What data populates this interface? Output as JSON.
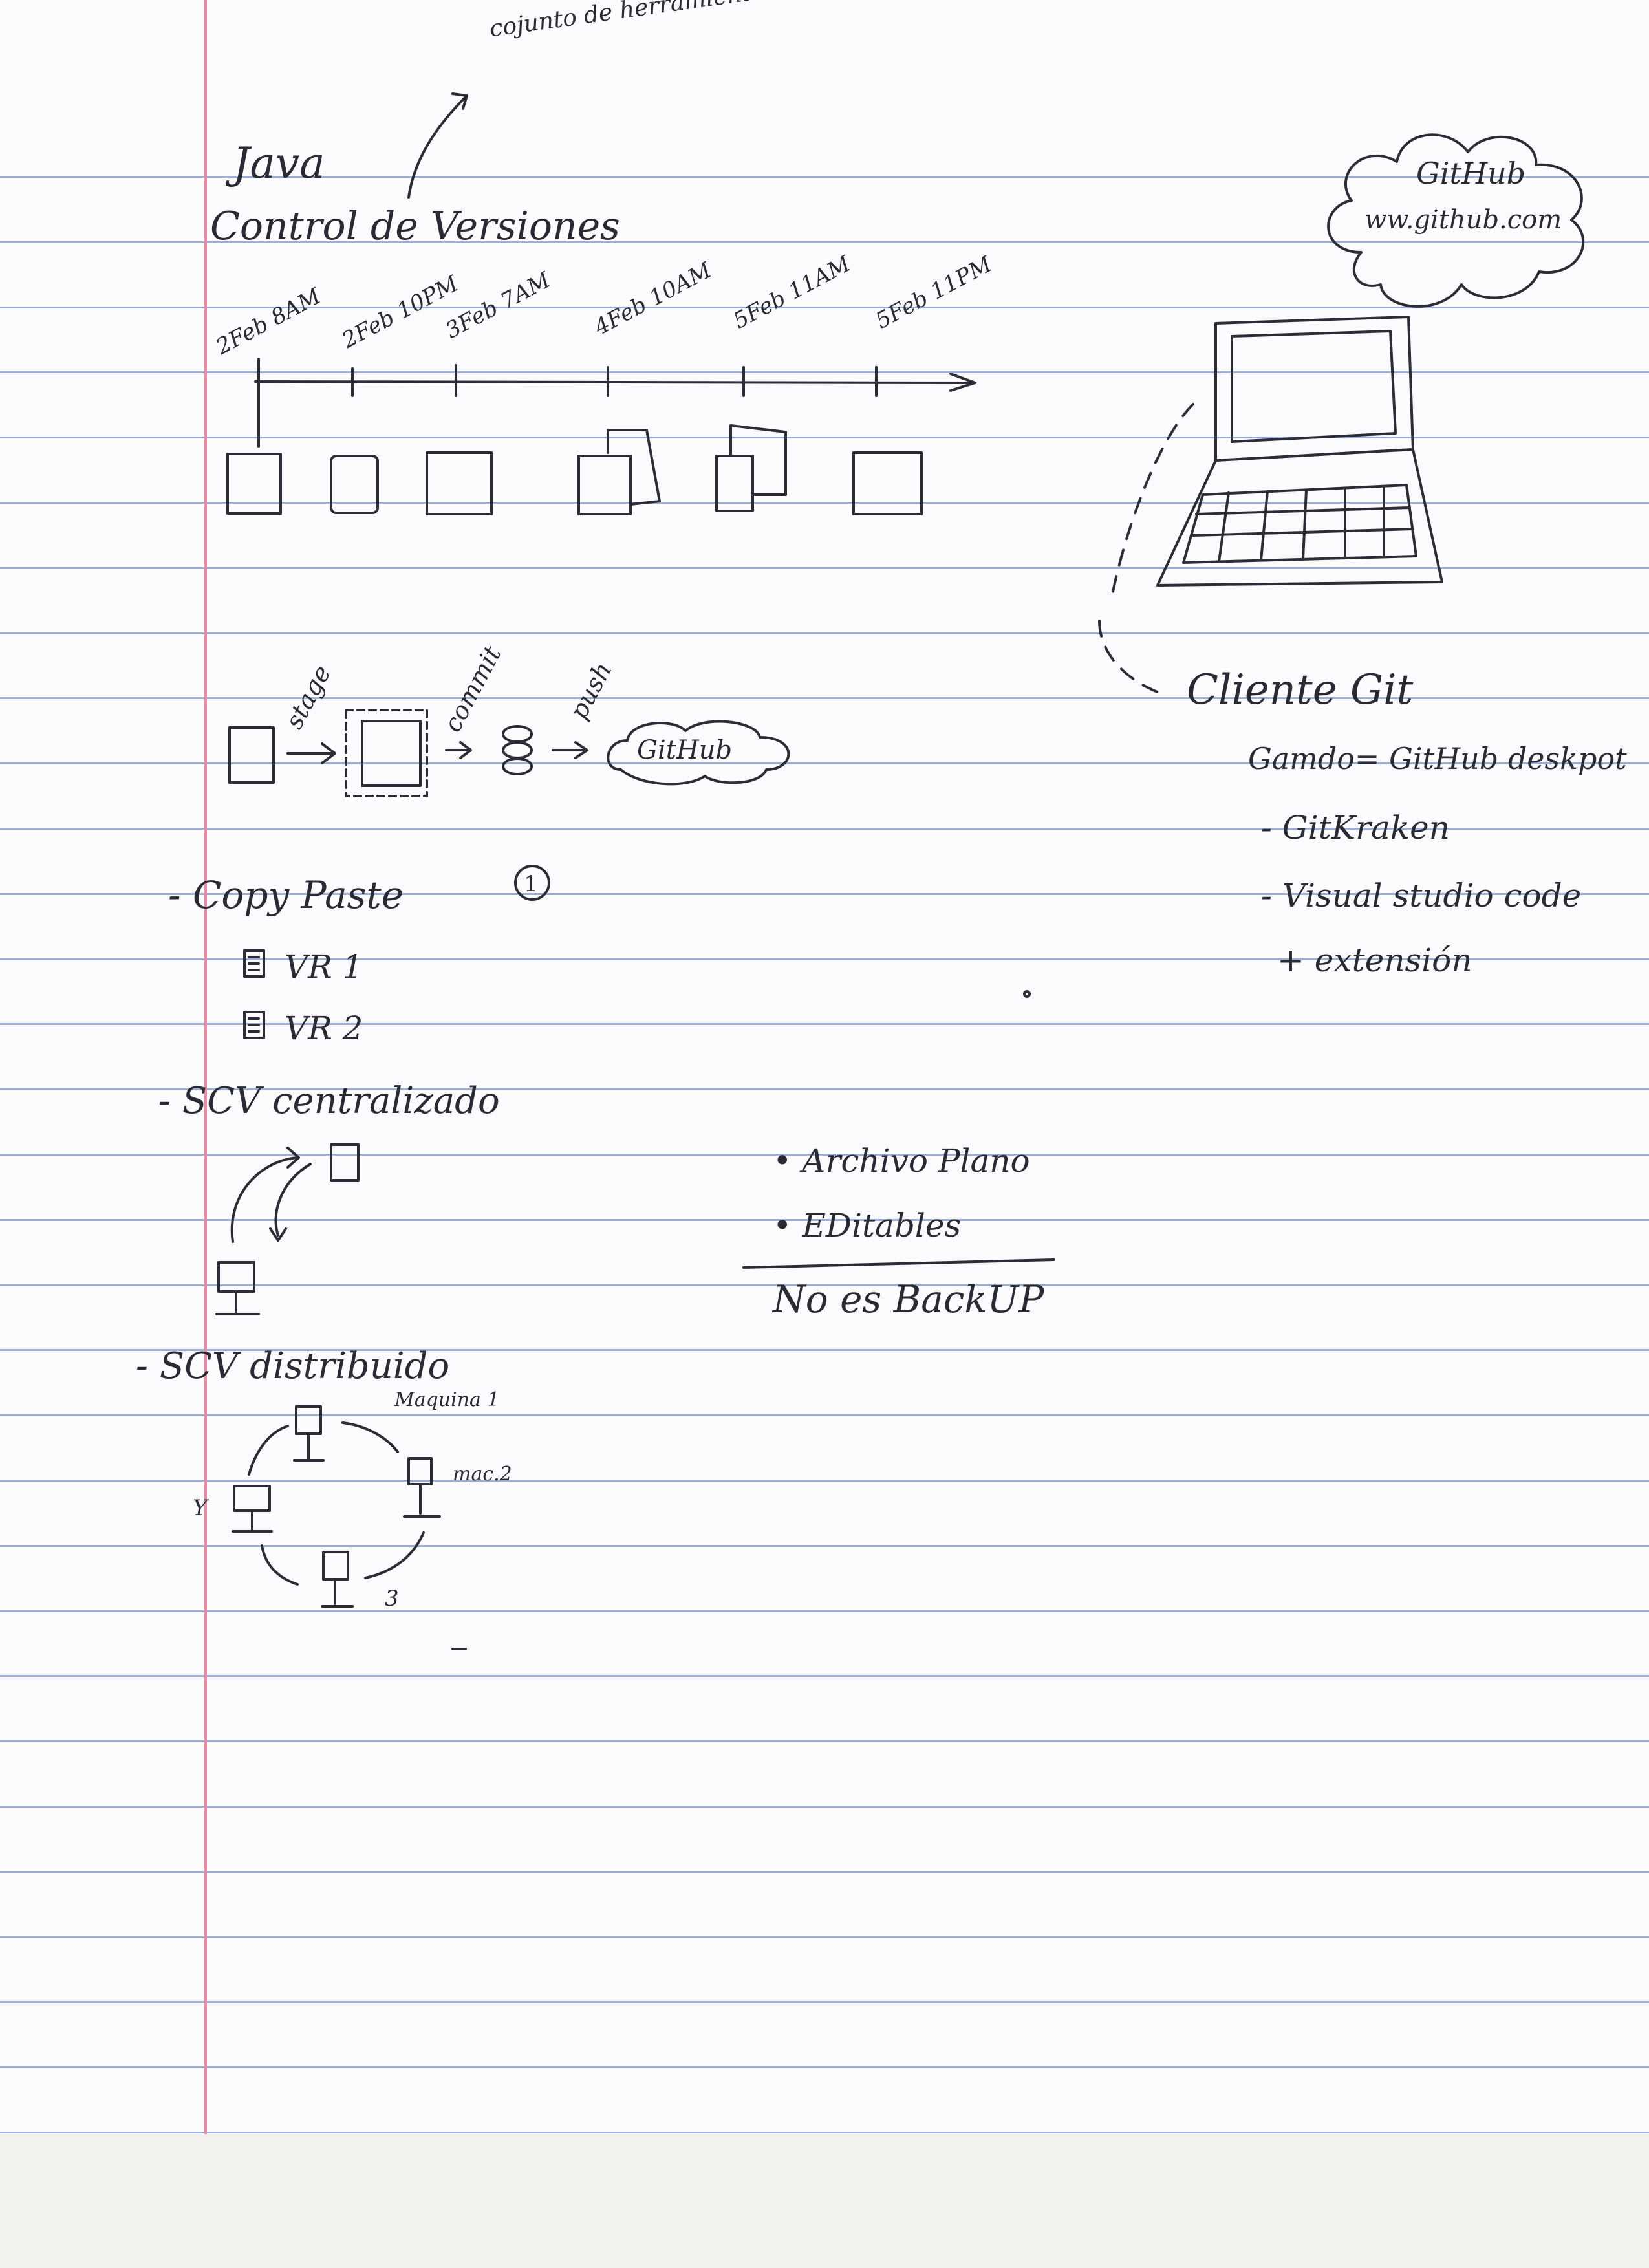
{
  "notes": {
    "title": "Java",
    "annotation": "cojunto de herramienta",
    "subtitle": "Control de Versiones",
    "timeline_labels": [
      "2Feb 8AM",
      "2Feb 10PM",
      "3Feb 7AM",
      "4Feb 10AM",
      "5Feb 11AM",
      "5Feb 11PM"
    ],
    "cloud": {
      "name": "GitHub",
      "url": "ww.github.com"
    },
    "workflow": {
      "stage": "stage",
      "commit": "commit",
      "push": "push",
      "github": "GitHub"
    },
    "client_title": "Cliente Git",
    "client_items": [
      "Gamdo= GitHub deskpot",
      "- GitKraken",
      "- Visual studio code",
      "+ extensión"
    ],
    "copy_paste": {
      "title": "- Copy Paste",
      "badge": "1",
      "versions": [
        "VR 1",
        "VR 2"
      ]
    },
    "centralized": "- SCV centralizado",
    "archive": {
      "line1": "• Archivo Plano",
      "line2": "• EDitables",
      "line3": "No es BackUP"
    },
    "distributed": {
      "title": "- SCV distribuido",
      "nodes": [
        "Maquina 1",
        "mac.2",
        "3",
        "Y"
      ]
    }
  }
}
